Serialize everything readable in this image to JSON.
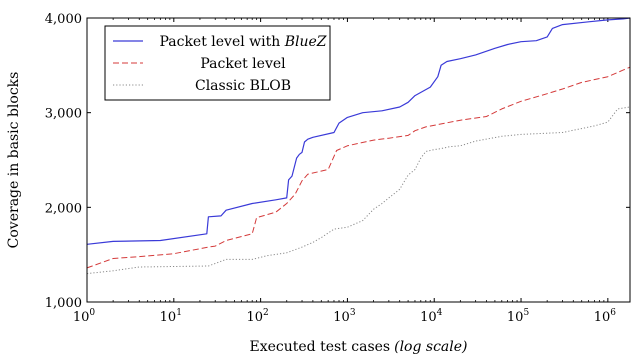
{
  "chart_data": {
    "type": "line",
    "xscale": "log",
    "xlim": [
      1,
      1800000
    ],
    "ylim": [
      1000,
      4000
    ],
    "x_ticks": [
      1,
      10,
      100,
      1000,
      10000,
      100000,
      1000000
    ],
    "x_tick_labels": [
      {
        "base": "10",
        "exp": "0"
      },
      {
        "base": "10",
        "exp": "1"
      },
      {
        "base": "10",
        "exp": "2"
      },
      {
        "base": "10",
        "exp": "3"
      },
      {
        "base": "10",
        "exp": "4"
      },
      {
        "base": "10",
        "exp": "5"
      },
      {
        "base": "10",
        "exp": "6"
      }
    ],
    "y_ticks": [
      1000,
      2000,
      3000,
      4000
    ],
    "y_tick_labels": [
      "1,000",
      "2,000",
      "3,000",
      "4,000"
    ],
    "xlabel": {
      "main": "Executed test cases",
      "note": "(log scale)"
    },
    "ylabel": "Coverage in basic blocks",
    "grid": false,
    "legend_position": "top-left",
    "series": [
      {
        "name": {
          "prefix": "Packet level with ",
          "emph": "BlueZ"
        },
        "color": "#3a3ad8",
        "dash": "solid",
        "x": [
          1,
          2,
          7,
          24,
          25,
          35,
          40,
          80,
          150,
          200,
          210,
          230,
          260,
          280,
          300,
          320,
          350,
          400,
          700,
          800,
          1000,
          1500,
          2500,
          4000,
          5000,
          6000,
          9000,
          11000,
          12000,
          14000,
          20000,
          30000,
          50000,
          70000,
          100000,
          150000,
          200000,
          230000,
          300000,
          600000,
          1000000,
          1500000,
          1800000
        ],
        "y": [
          1610,
          1640,
          1650,
          1720,
          1900,
          1910,
          1970,
          2040,
          2080,
          2100,
          2290,
          2330,
          2520,
          2560,
          2580,
          2690,
          2720,
          2740,
          2790,
          2890,
          2950,
          3000,
          3020,
          3060,
          3110,
          3180,
          3270,
          3380,
          3500,
          3540,
          3570,
          3610,
          3680,
          3720,
          3750,
          3760,
          3800,
          3890,
          3930,
          3960,
          3980,
          3990,
          4000
        ]
      },
      {
        "name": {
          "prefix": "Packet level",
          "emph": ""
        },
        "color": "#d43a3a",
        "dash": "dashed",
        "x": [
          1,
          2,
          4,
          10,
          25,
          30,
          40,
          80,
          90,
          150,
          200,
          250,
          300,
          350,
          600,
          750,
          1000,
          2000,
          3000,
          5000,
          6000,
          8000,
          20000,
          40000,
          60000,
          100000,
          200000,
          300000,
          500000,
          1000000,
          1500000,
          1800000
        ],
        "y": [
          1360,
          1460,
          1480,
          1510,
          1580,
          1590,
          1650,
          1720,
          1890,
          1950,
          2040,
          2140,
          2280,
          2350,
          2400,
          2600,
          2650,
          2710,
          2730,
          2760,
          2810,
          2850,
          2920,
          2960,
          3040,
          3120,
          3200,
          3250,
          3320,
          3380,
          3450,
          3480
        ]
      },
      {
        "name": {
          "prefix": "Classic BLOB",
          "emph": ""
        },
        "color": "#8a8a8a",
        "dash": "dotted",
        "x": [
          1,
          2,
          4,
          25,
          40,
          80,
          120,
          200,
          300,
          400,
          500,
          700,
          1000,
          1500,
          2000,
          2500,
          3000,
          4000,
          5000,
          6000,
          7000,
          8000,
          10000,
          12000,
          15000,
          20000,
          30000,
          60000,
          100000,
          300000,
          700000,
          1000000,
          1300000,
          1800000
        ],
        "y": [
          1300,
          1330,
          1370,
          1380,
          1450,
          1450,
          1490,
          1520,
          1580,
          1630,
          1680,
          1770,
          1790,
          1860,
          1980,
          2040,
          2100,
          2190,
          2340,
          2400,
          2520,
          2590,
          2610,
          2620,
          2640,
          2650,
          2700,
          2750,
          2770,
          2790,
          2860,
          2900,
          3040,
          3060
        ]
      }
    ]
  }
}
